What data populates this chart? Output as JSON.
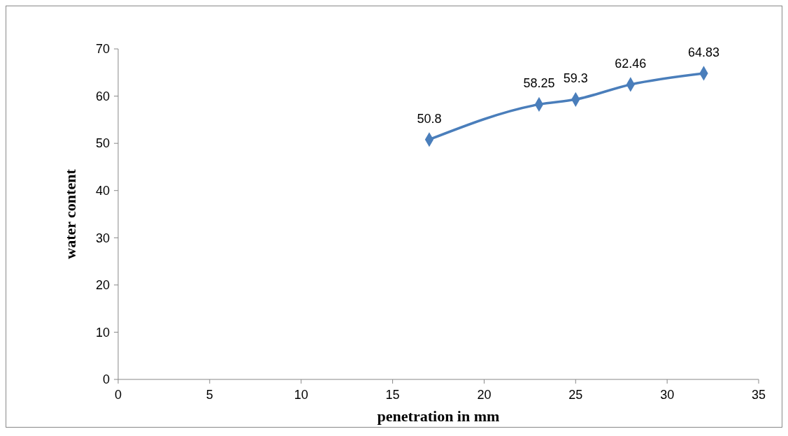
{
  "chart_data": {
    "type": "line",
    "xlabel": "penetration in mm",
    "ylabel": "water content",
    "x": [
      17,
      23,
      25,
      28,
      32
    ],
    "series": [
      {
        "color": "#4a7ebb",
        "values": [
          50.8,
          58.25,
          59.3,
          62.46,
          64.83
        ]
      }
    ],
    "xlim": [
      0,
      35
    ],
    "xticks": [
      0,
      5,
      10,
      15,
      20,
      25,
      30,
      35
    ],
    "ylim": [
      0,
      70
    ],
    "yticks": [
      0,
      10,
      20,
      30,
      40,
      50,
      60,
      70
    ],
    "marker": "diamond",
    "data_labels": true
  }
}
